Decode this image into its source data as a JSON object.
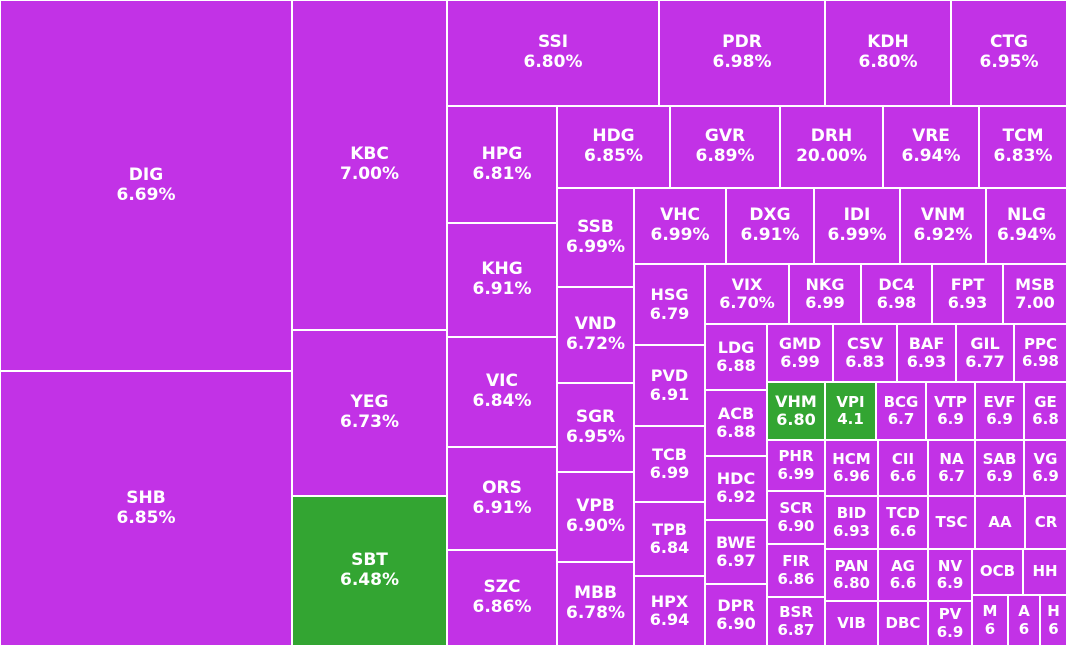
{
  "colors": {
    "up": "#c232e6",
    "down": "#33a532",
    "border": "#ffffff",
    "text": "#ffffff"
  },
  "chart_data": {
    "type": "treemap",
    "items": [
      {
        "ticker": "DIG",
        "change": "6.69%",
        "color": "up"
      },
      {
        "ticker": "SHB",
        "change": "6.85%",
        "color": "up"
      },
      {
        "ticker": "KBC",
        "change": "7.00%",
        "color": "up"
      },
      {
        "ticker": "YEG",
        "change": "6.73%",
        "color": "up"
      },
      {
        "ticker": "SBT",
        "change": "6.48%",
        "color": "down"
      },
      {
        "ticker": "SSI",
        "change": "6.80%",
        "color": "up"
      },
      {
        "ticker": "PDR",
        "change": "6.98%",
        "color": "up"
      },
      {
        "ticker": "KDH",
        "change": "6.80%",
        "color": "up"
      },
      {
        "ticker": "CTG",
        "change": "6.95%",
        "color": "up"
      },
      {
        "ticker": "HPG",
        "change": "6.81%",
        "color": "up"
      },
      {
        "ticker": "KHG",
        "change": "6.91%",
        "color": "up"
      },
      {
        "ticker": "VIC",
        "change": "6.84%",
        "color": "up"
      },
      {
        "ticker": "ORS",
        "change": "6.91%",
        "color": "up"
      },
      {
        "ticker": "SZC",
        "change": "6.86%",
        "color": "up"
      },
      {
        "ticker": "HDG",
        "change": "6.85%",
        "color": "up"
      },
      {
        "ticker": "GVR",
        "change": "6.89%",
        "color": "up"
      },
      {
        "ticker": "DRH",
        "change": "20.00%",
        "color": "up"
      },
      {
        "ticker": "VRE",
        "change": "6.94%",
        "color": "up"
      },
      {
        "ticker": "TCM",
        "change": "6.83%",
        "color": "up"
      },
      {
        "ticker": "SSB",
        "change": "6.99%",
        "color": "up"
      },
      {
        "ticker": "VND",
        "change": "6.72%",
        "color": "up"
      },
      {
        "ticker": "SGR",
        "change": "6.95%",
        "color": "up"
      },
      {
        "ticker": "VPB",
        "change": "6.90%",
        "color": "up"
      },
      {
        "ticker": "MBB",
        "change": "6.78%",
        "color": "up"
      },
      {
        "ticker": "VHC",
        "change": "6.99%",
        "color": "up"
      },
      {
        "ticker": "DXG",
        "change": "6.91%",
        "color": "up"
      },
      {
        "ticker": "IDI",
        "change": "6.99%",
        "color": "up"
      },
      {
        "ticker": "VNM",
        "change": "6.92%",
        "color": "up"
      },
      {
        "ticker": "NLG",
        "change": "6.94%",
        "color": "up"
      },
      {
        "ticker": "HSG",
        "change": "6.79",
        "color": "up"
      },
      {
        "ticker": "PVD",
        "change": "6.91",
        "color": "up"
      },
      {
        "ticker": "TCB",
        "change": "6.99",
        "color": "up"
      },
      {
        "ticker": "TPB",
        "change": "6.84",
        "color": "up"
      },
      {
        "ticker": "HPX",
        "change": "6.94",
        "color": "up"
      },
      {
        "ticker": "VIX",
        "change": "6.70%",
        "color": "up"
      },
      {
        "ticker": "NKG",
        "change": "6.99",
        "color": "up"
      },
      {
        "ticker": "DC4",
        "change": "6.98",
        "color": "up"
      },
      {
        "ticker": "FPT",
        "change": "6.93",
        "color": "up"
      },
      {
        "ticker": "MSB",
        "change": "7.00",
        "color": "up"
      },
      {
        "ticker": "LDG",
        "change": "6.88",
        "color": "up"
      },
      {
        "ticker": "ACB",
        "change": "6.88",
        "color": "up"
      },
      {
        "ticker": "HDC",
        "change": "6.92",
        "color": "up"
      },
      {
        "ticker": "BWE",
        "change": "6.97",
        "color": "up"
      },
      {
        "ticker": "DPR",
        "change": "6.90",
        "color": "up"
      },
      {
        "ticker": "GMD",
        "change": "6.99",
        "color": "up"
      },
      {
        "ticker": "CSV",
        "change": "6.83",
        "color": "up"
      },
      {
        "ticker": "BAF",
        "change": "6.93",
        "color": "up"
      },
      {
        "ticker": "GIL",
        "change": "6.77",
        "color": "up"
      },
      {
        "ticker": "PPC",
        "change": "6.98",
        "color": "up"
      },
      {
        "ticker": "VHM",
        "change": "6.80",
        "color": "down"
      },
      {
        "ticker": "VPI",
        "change": "4.1",
        "color": "down"
      },
      {
        "ticker": "BCG",
        "change": "6.7",
        "color": "up"
      },
      {
        "ticker": "VTP",
        "change": "6.9",
        "color": "up"
      },
      {
        "ticker": "EVF",
        "change": "6.9",
        "color": "up"
      },
      {
        "ticker": "GE",
        "change": "6.8",
        "color": "up"
      },
      {
        "ticker": "PHR",
        "change": "6.99",
        "color": "up"
      },
      {
        "ticker": "HCM",
        "change": "6.96",
        "color": "up"
      },
      {
        "ticker": "CII",
        "change": "6.6",
        "color": "up"
      },
      {
        "ticker": "NA",
        "change": "6.7",
        "color": "up"
      },
      {
        "ticker": "SAB",
        "change": "6.9",
        "color": "up"
      },
      {
        "ticker": "VG",
        "change": "6.9",
        "color": "up"
      },
      {
        "ticker": "SCR",
        "change": "6.90",
        "color": "up"
      },
      {
        "ticker": "BID",
        "change": "6.93",
        "color": "up"
      },
      {
        "ticker": "TCD",
        "change": "6.6",
        "color": "up"
      },
      {
        "ticker": "TSC",
        "change": "",
        "color": "up"
      },
      {
        "ticker": "AA",
        "change": "",
        "color": "up"
      },
      {
        "ticker": "CR",
        "change": "",
        "color": "up"
      },
      {
        "ticker": "FIR",
        "change": "6.86",
        "color": "up"
      },
      {
        "ticker": "PAN",
        "change": "6.80",
        "color": "up"
      },
      {
        "ticker": "AG",
        "change": "6.6",
        "color": "up"
      },
      {
        "ticker": "NV",
        "change": "6.9",
        "color": "up"
      },
      {
        "ticker": "OCB",
        "change": "",
        "color": "up"
      },
      {
        "ticker": "HH",
        "change": "",
        "color": "up"
      },
      {
        "ticker": "BSR",
        "change": "6.87",
        "color": "up"
      },
      {
        "ticker": "VIB",
        "change": "",
        "color": "up"
      },
      {
        "ticker": "DBC",
        "change": "",
        "color": "up"
      },
      {
        "ticker": "PV",
        "change": "6.9",
        "color": "up"
      },
      {
        "ticker": "M",
        "change": "6",
        "color": "up"
      },
      {
        "ticker": "A",
        "change": "6",
        "color": "up"
      },
      {
        "ticker": "H",
        "change": "6",
        "color": "up"
      }
    ]
  }
}
